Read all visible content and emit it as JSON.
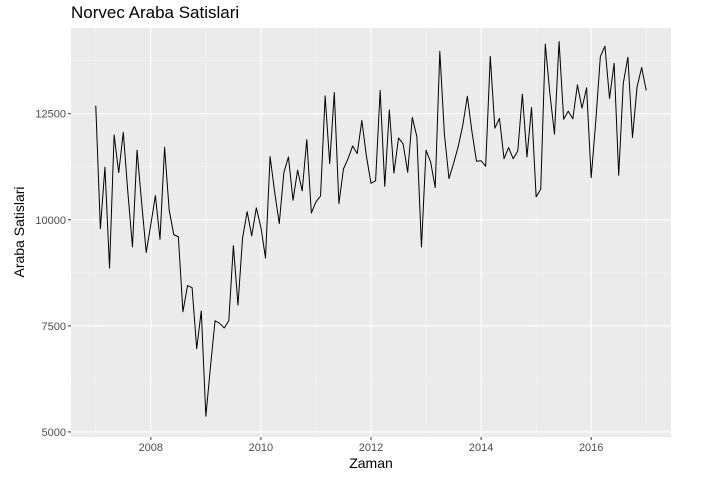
{
  "chart_data": {
    "type": "line",
    "title": "Norvec Araba Satislari",
    "xlabel": "Zaman",
    "ylabel": "Araba Satislari",
    "xlim": [
      2006.55,
      2017.45
    ],
    "ylim": [
      4880,
      14520
    ],
    "x_ticks": [
      2008,
      2010,
      2012,
      2014,
      2016
    ],
    "x_tick_labels": [
      "2008",
      "2010",
      "2012",
      "2014",
      "2016"
    ],
    "y_ticks": [
      5000,
      7500,
      10000,
      12500
    ],
    "y_tick_labels": [
      "5000",
      "7500",
      "10000",
      "12500"
    ],
    "grid": true,
    "legend": "none",
    "series": [
      {
        "color": "#000000",
        "start": 2007.0,
        "step": 0.083333,
        "values": [
          12690,
          9790,
          11240,
          8860,
          12000,
          11110,
          12060,
          10640,
          9360,
          11640,
          10400,
          9230,
          9890,
          10570,
          9540,
          11710,
          10230,
          9650,
          9600,
          7830,
          8450,
          8400,
          6960,
          7850,
          5370,
          6530,
          7620,
          7560,
          7450,
          7620,
          9390,
          7990,
          9570,
          10190,
          9620,
          10280,
          9820,
          9100,
          11490,
          10650,
          9910,
          11110,
          11480,
          10460,
          11170,
          10680,
          11890,
          10160,
          10420,
          10560,
          12920,
          11320,
          13000,
          10380,
          11200,
          11440,
          11740,
          11560,
          12340,
          11500,
          10860,
          10920,
          13050,
          10790,
          12590,
          11100,
          11930,
          11790,
          11120,
          12410,
          11960,
          9360,
          11640,
          11360,
          10760,
          13970,
          12020,
          10970,
          11330,
          11720,
          12220,
          12910,
          12080,
          11380,
          11390,
          11260,
          13850,
          12160,
          12390,
          11440,
          11700,
          11440,
          11620,
          12960,
          11480,
          12650,
          10540,
          10720,
          14140,
          12970,
          12020,
          14200,
          12370,
          12560,
          12380,
          13180,
          12630,
          13110,
          10990,
          12320,
          13850,
          14090,
          12860,
          13690,
          11050,
          13220,
          13830,
          11940,
          13130,
          13590,
          13050
        ]
      }
    ]
  }
}
